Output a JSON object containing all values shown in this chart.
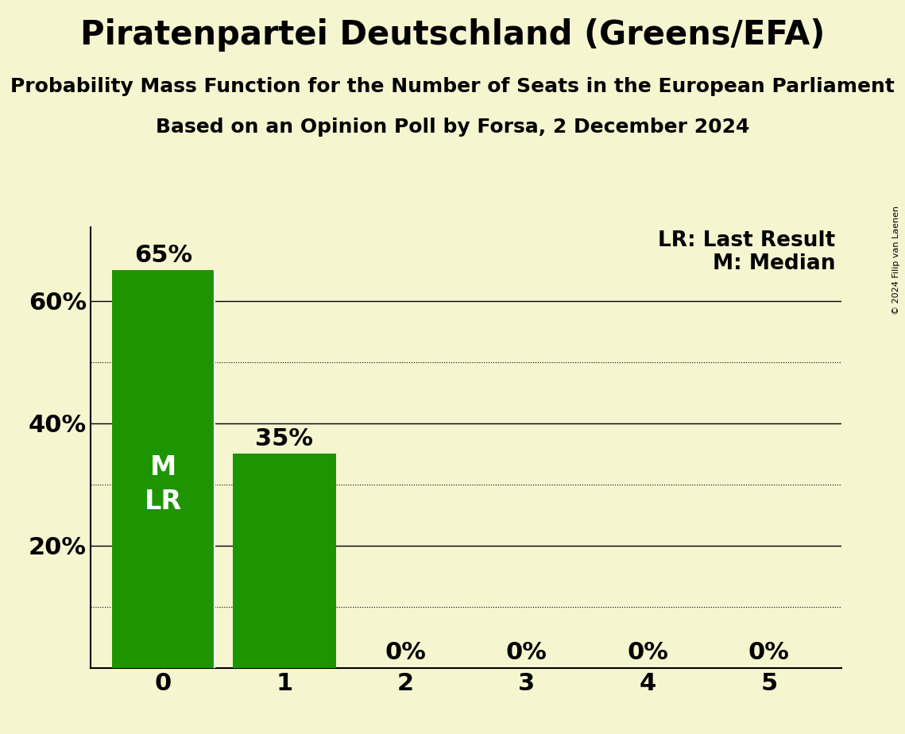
{
  "title": "Piratenpartei Deutschland (Greens/EFA)",
  "subtitle1": "Probability Mass Function for the Number of Seats in the European Parliament",
  "subtitle2": "Based on an Opinion Poll by Forsa, 2 December 2024",
  "copyright": "© 2024 Filip van Laenen",
  "seats": [
    0,
    1,
    2,
    3,
    4,
    5
  ],
  "probabilities": [
    0.65,
    0.35,
    0.0,
    0.0,
    0.0,
    0.0
  ],
  "bar_color": "#1e9400",
  "background_color": "#f5f5d0",
  "legend_lr": "LR: Last Result",
  "legend_m": "M: Median",
  "ylim": [
    0,
    0.72
  ],
  "yticks": [
    0.0,
    0.2,
    0.4,
    0.6
  ],
  "ytick_labels": [
    "",
    "20%",
    "40%",
    "60%"
  ],
  "title_fontsize": 30,
  "subtitle_fontsize": 18,
  "axis_tick_fontsize": 22,
  "bar_label_fontsize": 22,
  "legend_fontsize": 19,
  "inside_label_fontsize": 24
}
